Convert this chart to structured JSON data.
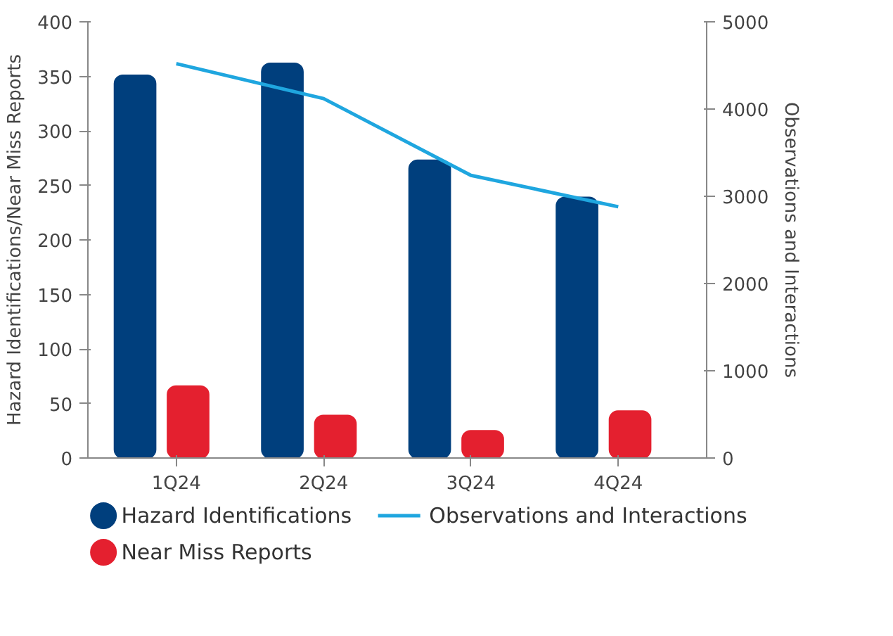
{
  "chart_data": {
    "type": "bar",
    "categories": [
      "1Q24",
      "2Q24",
      "3Q24",
      "4Q24"
    ],
    "ylabel": "Hazard Identifications/Near Miss Reports",
    "y2label": "Observations and Interactions",
    "ylim": [
      0,
      400
    ],
    "yticks": [
      0,
      50,
      100,
      150,
      200,
      250,
      300,
      350,
      400
    ],
    "y2lim": [
      0,
      5000
    ],
    "y2ticks": [
      0,
      1000,
      2000,
      3000,
      4000,
      5000
    ],
    "grid": false,
    "legend": "bottom",
    "series": [
      {
        "name": "Hazard Identifications",
        "color": "#003f7d",
        "values": [
          351,
          362,
          273,
          239
        ]
      },
      {
        "name": "Near Miss Reports",
        "color": "#e4202f",
        "values": [
          66,
          39,
          25,
          43
        ]
      },
      {
        "name": "Observations and Interactions",
        "type": "line",
        "axis": "y2",
        "color": "#1fa6df",
        "values": [
          4520,
          4120,
          3240,
          2880
        ]
      }
    ]
  }
}
